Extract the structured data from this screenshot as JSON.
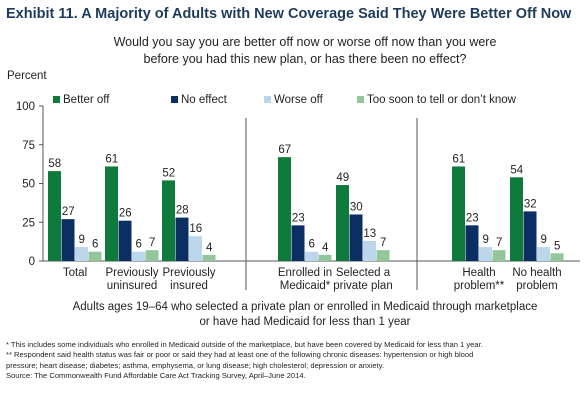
{
  "exhibit_title": "Exhibit 11. A Majority of Adults with New Coverage Said They Were Better Off Now",
  "question_lines": [
    "Would you say you are better off now or worse off now than you were",
    "before you had this new plan, or has there been no effect?"
  ],
  "y_axis_title": "Percent",
  "subtitle_lines": [
    "Adults ages 19–64 who selected a private plan or enrolled in Medicaid through marketplace",
    "or have had Medicaid for less than 1 year"
  ],
  "footnotes": [
    "* This includes some individuals who enrolled in Medicaid outside of the marketplace, but have been covered by Medicaid for less than 1 year.",
    "** Respondent said health status was fair or poor or said they had at least one of the following chronic diseases: hypertension or high blood",
    "pressure; heart disease; diabetes; asthma, emphysema, or lung disease; high cholesterol; depression or anxiety.",
    "Source: The Commonwealth Fund Affordable Care Act Tracking Survey, April–June 2014."
  ],
  "colors": {
    "better_off": "#0e7a3c",
    "no_effect": "#0b2e63",
    "worse_off": "#bcd7ec",
    "too_soon": "#93c69a",
    "title": "#1f3b5c",
    "axis": "#555555"
  },
  "chart_data": {
    "type": "bar",
    "ylabel": "Percent",
    "ylim": [
      0,
      100
    ],
    "yticks": [
      0,
      25,
      50,
      75,
      100
    ],
    "legend_position": "top",
    "grid": false,
    "categories": [
      [
        "Total"
      ],
      [
        "Previously",
        "uninsured"
      ],
      [
        "Previously",
        "insured"
      ],
      [
        "Enrolled in",
        "Medicaid*"
      ],
      [
        "Selected a",
        "private plan"
      ],
      [
        "Health",
        "problem**"
      ],
      [
        "No health",
        "problem"
      ]
    ],
    "groups": [
      [
        0,
        1,
        2
      ],
      [
        3,
        4
      ],
      [
        5,
        6
      ]
    ],
    "series": [
      {
        "name": "Better off",
        "values": [
          58,
          61,
          52,
          67,
          49,
          61,
          54
        ]
      },
      {
        "name": "No effect",
        "values": [
          27,
          26,
          28,
          23,
          30,
          23,
          32
        ]
      },
      {
        "name": "Worse off",
        "values": [
          9,
          6,
          16,
          6,
          13,
          9,
          9
        ]
      },
      {
        "name": "Too soon to tell or don’t know",
        "values": [
          6,
          7,
          4,
          4,
          7,
          7,
          5
        ]
      }
    ]
  }
}
